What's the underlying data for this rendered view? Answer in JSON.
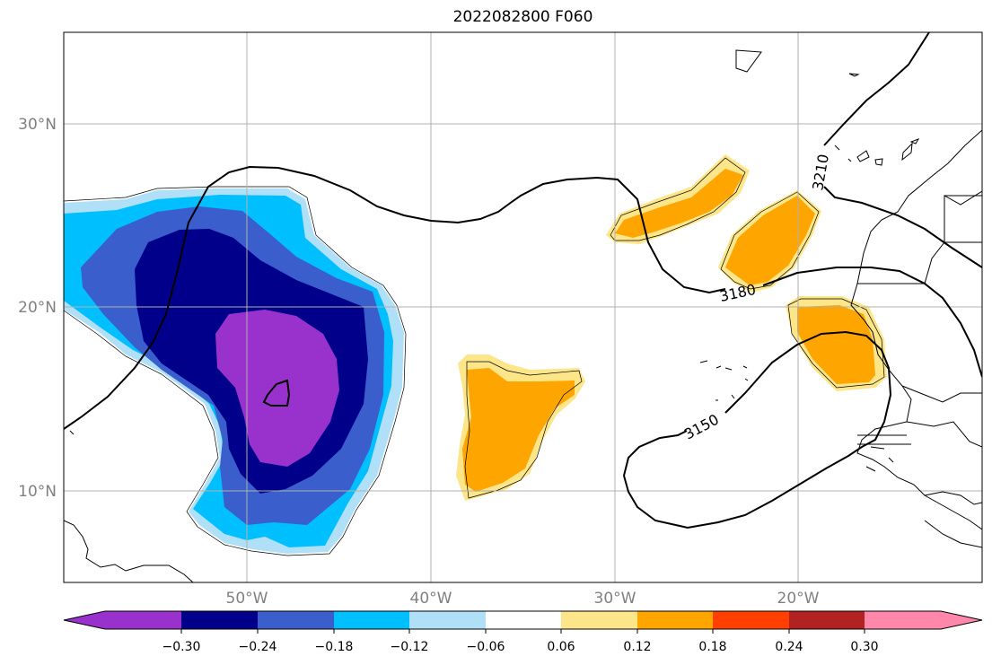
{
  "title": "2022082800 F060",
  "map": {
    "lat_labels": [
      "30°N",
      "20°N",
      "10°N"
    ],
    "lon_labels": [
      "50°W",
      "40°W",
      "30°W",
      "20°W"
    ],
    "contour_labels": [
      "3210",
      "3180",
      "3150"
    ],
    "colors": {
      "purple": "#9932cc",
      "navy": "#00008b",
      "royal": "#3a5fcd",
      "sky": "#00bfff",
      "lightsky": "#afe0f8",
      "white": "#ffffff",
      "lightyellow": "#fde68a",
      "orange": "#ffa500",
      "redorange": "#ff4000",
      "firebrick": "#b22222",
      "pink": "#ff88aa"
    }
  },
  "colorbar": {
    "ticks": [
      "−0.30",
      "−0.24",
      "−0.18",
      "−0.12",
      "−0.06",
      "0.06",
      "0.12",
      "0.18",
      "0.24",
      "0.30"
    ]
  }
}
